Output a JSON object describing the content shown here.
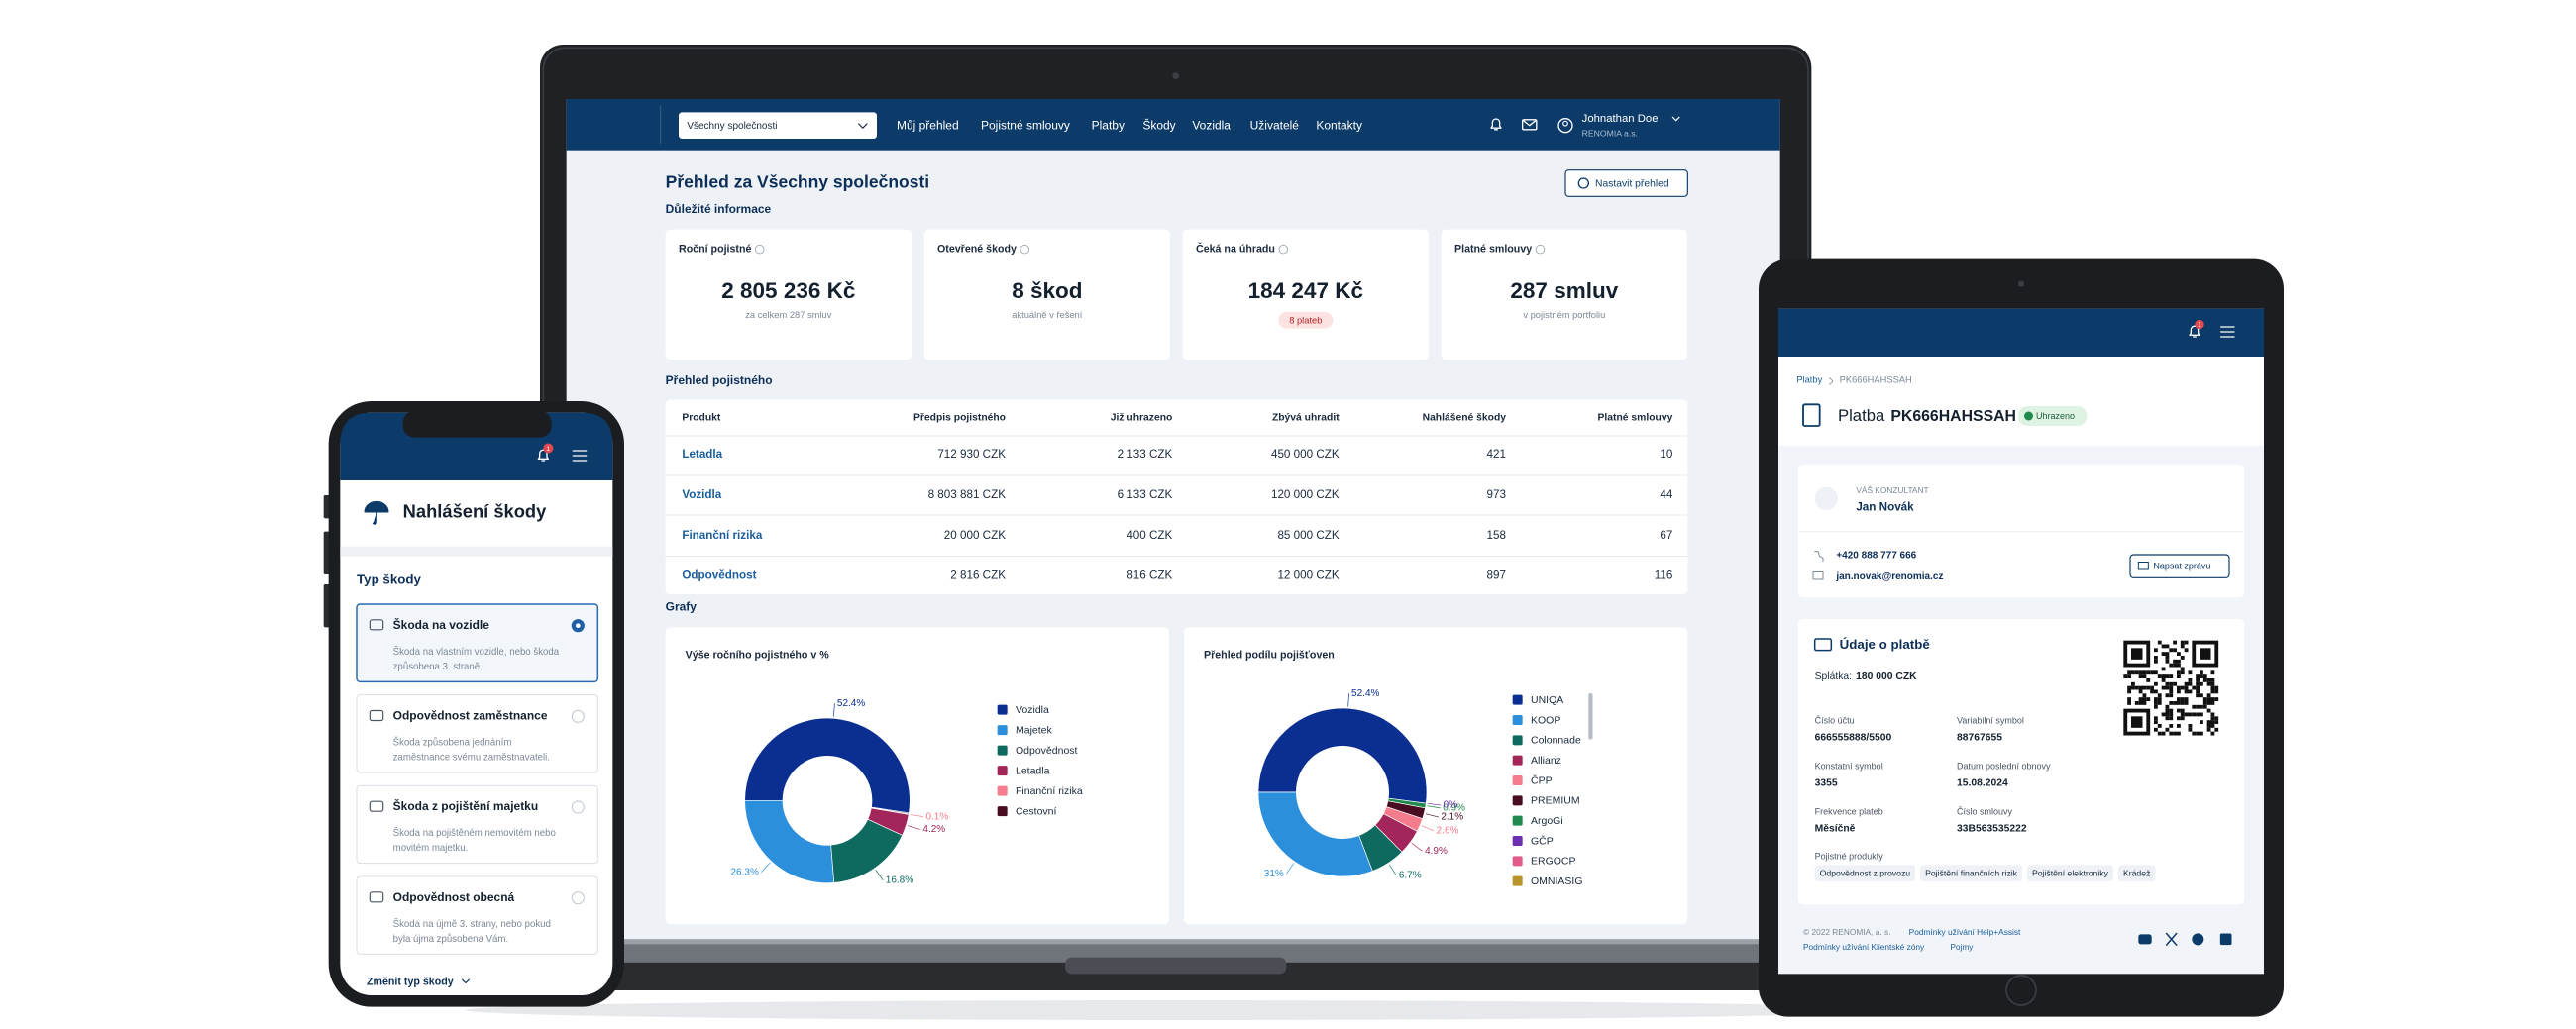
{
  "laptop": {
    "company_select": "Všechny společnosti",
    "nav": [
      "Můj přehled",
      "Pojistné smlouvy",
      "Platby",
      "Škody",
      "Vozidla",
      "Uživatelé",
      "Kontakty"
    ],
    "user": {
      "name": "Johnathan Doe",
      "company": "RENOMIA a.s."
    },
    "page_title": "Přehled za Všechny společnosti",
    "settings_button": "Nastavit přehled",
    "section_important": "Důležité informace",
    "kpis": [
      {
        "label": "Roční pojistné",
        "value": "2 805 236 Kč",
        "note": "za celkem 287 smluv"
      },
      {
        "label": "Otevřené škody",
        "value": "8 škod",
        "note": "aktuálně v řešení"
      },
      {
        "label": "Čeká na úhradu",
        "value": "184 247 Kč",
        "badge": "8 plateb"
      },
      {
        "label": "Platné smlouvy",
        "value": "287 smluv",
        "note": "v pojistném portfoliu"
      }
    ],
    "section_premiums": "Přehled pojistného",
    "table": {
      "header": [
        "Produkt",
        "Předpis pojistného",
        "Již uhrazeno",
        "Zbývá uhradit",
        "Nahlášené škody",
        "Platné smlouvy"
      ],
      "rows": [
        [
          "Letadla",
          "712 930 CZK",
          "2 133 CZK",
          "450 000 CZK",
          421,
          10
        ],
        [
          "Vozidla",
          "8 803 881 CZK",
          "6 133 CZK",
          "120 000 CZK",
          973,
          44
        ],
        [
          "Finanční rizika",
          "20 000 CZK",
          "400 CZK",
          "85 000 CZK",
          158,
          67
        ],
        [
          "Odpovědnost",
          "2 816 CZK",
          "816 CZK",
          "12 000 CZK",
          897,
          116
        ]
      ]
    },
    "section_charts": "Grafy"
  },
  "chart_data": [
    {
      "type": "donut",
      "title": "Výše ročního pojistného v %",
      "categories": [
        "Vozidla",
        "Majetek",
        "Odpovědnost",
        "Letadla",
        "Finanční rizika",
        "Cestovní"
      ],
      "values": [
        52.4,
        26.3,
        16.8,
        4.2,
        0.1,
        0.2
      ],
      "value_labels": [
        "52.4%",
        "26.3%",
        "16.8%",
        "4.2%",
        "0.1%",
        null
      ],
      "colors": [
        "#0b2e91",
        "#2b8fdb",
        "#0e6a5e",
        "#a3265a",
        "#f47c8c",
        "#4a0c20"
      ]
    },
    {
      "type": "donut",
      "title": "Přehled podílu pojišťoven",
      "categories": [
        "UNIQA",
        "KOOP",
        "Colonnade",
        "Allianz",
        "ČPP",
        "PREMIUM",
        "ArgoGi",
        "GČP",
        "ERGOCP",
        "OMNIASIG"
      ],
      "values": [
        52.4,
        31,
        6.7,
        4.9,
        2.6,
        2.1,
        0.9,
        0,
        0,
        0
      ],
      "value_labels": [
        "52.4%",
        "31%",
        "6.7%",
        "4.9%",
        "2.6%",
        "2.1%",
        "0.9%",
        "0%",
        null,
        null
      ],
      "colors": [
        "#0b2e91",
        "#2b8fdb",
        "#0e6a5e",
        "#a3265a",
        "#f47c8c",
        "#4a0c20",
        "#1f8a4c",
        "#6b2fb0",
        "#e05a8c",
        "#b8932a"
      ]
    }
  ],
  "phone": {
    "notification_count": "1",
    "title": "Nahlášení škody",
    "section": "Typ škody",
    "options": [
      {
        "title": "Škoda na vozidle",
        "description": [
          "Škoda na vlastním vozidle, nebo škoda",
          "způsobena 3. straně."
        ]
      },
      {
        "title": "Odpovědnost zaměstnance",
        "description": [
          "Škoda způsobena jednáním",
          "zaměstnance svému zaměstnavateli."
        ]
      },
      {
        "title": "Škoda z pojištění majetku",
        "description": [
          "Škoda na pojištěném nemovitém nebo",
          "movitém majetku."
        ]
      },
      {
        "title": "Odpovědnost obecná",
        "description": [
          "Škoda na újmě 3. strany, nebo pokud",
          "byla újma způsobena Vám."
        ]
      }
    ],
    "change_link": "Změnit typ škody"
  },
  "tablet": {
    "notification_count": "1",
    "breadcrumb": [
      "Platby",
      "PK666HAHSSAH"
    ],
    "title_label": "Platba",
    "title_id": "PK666HAHSSAH",
    "status": "Uhrazeno",
    "consultant": {
      "label": "VÁŠ KONZULTANT",
      "name": "Jan Novák",
      "phone": "+420 888 777 666",
      "email": "jan.novak@renomia.cz",
      "button": "Napsat zprávu"
    },
    "payment": {
      "title": "Údaje o platbě",
      "installment_label": "Splátka:",
      "installment": "180 000 CZK",
      "fields": [
        {
          "label": "Číslo účtu",
          "value": "666555888/5500"
        },
        {
          "label": "Variabilní symbol",
          "value": "88767655"
        },
        {
          "label": "Konstatní symbol",
          "value": "3355"
        },
        {
          "label": "Datum poslední obnovy",
          "value": "15.08.2024"
        },
        {
          "label": "Frekvence plateb",
          "value": "Měsíčně"
        },
        {
          "label": "Číslo smlouvy",
          "value": "33B563535222"
        }
      ],
      "products_label": "Pojistné produkty",
      "products": [
        "Odpovědnost z provozu",
        "Pojištění finančních rizik",
        "Pojištění elektroniky",
        "Krádež"
      ]
    },
    "footer": {
      "copyright": "© 2022 RENOMIA, a. s.",
      "links": [
        "Podmínky užívání Help+Assist",
        "Podmínky užívání Klientské zóny",
        "Pojmy"
      ]
    }
  }
}
